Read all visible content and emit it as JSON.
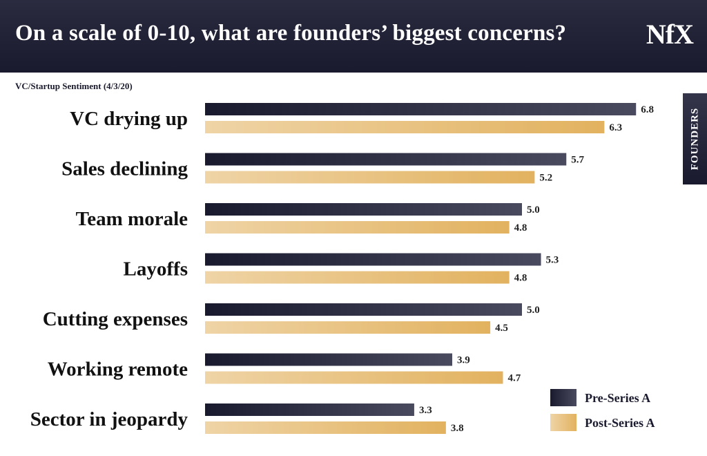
{
  "header": {
    "title": "On a scale of 0-10, what are founders’ biggest concerns?",
    "logo": "NfX"
  },
  "subtitle": "VC/Startup Sentiment (4/3/20)",
  "side_tag": "FOUNDERS",
  "colors": {
    "pre_dark": "#1a1a2e",
    "pre_light": "#4a4a5e",
    "post_dark": "#e2b25f",
    "post_light": "#efd4a6"
  },
  "chart_data": {
    "type": "bar",
    "orientation": "horizontal",
    "categories": [
      "VC drying up",
      "Sales declining",
      "Team morale",
      "Layoffs",
      "Cutting expenses",
      "Working remote",
      "Sector in jeopardy"
    ],
    "series": [
      {
        "name": "Pre-Series A",
        "values": [
          6.8,
          5.7,
          5.0,
          5.3,
          5.0,
          3.9,
          3.3
        ]
      },
      {
        "name": "Post-Series A",
        "values": [
          6.3,
          5.2,
          4.8,
          4.8,
          4.5,
          4.7,
          3.8
        ]
      }
    ],
    "data_labels": true,
    "legend": "bottom-right",
    "grid": false
  }
}
